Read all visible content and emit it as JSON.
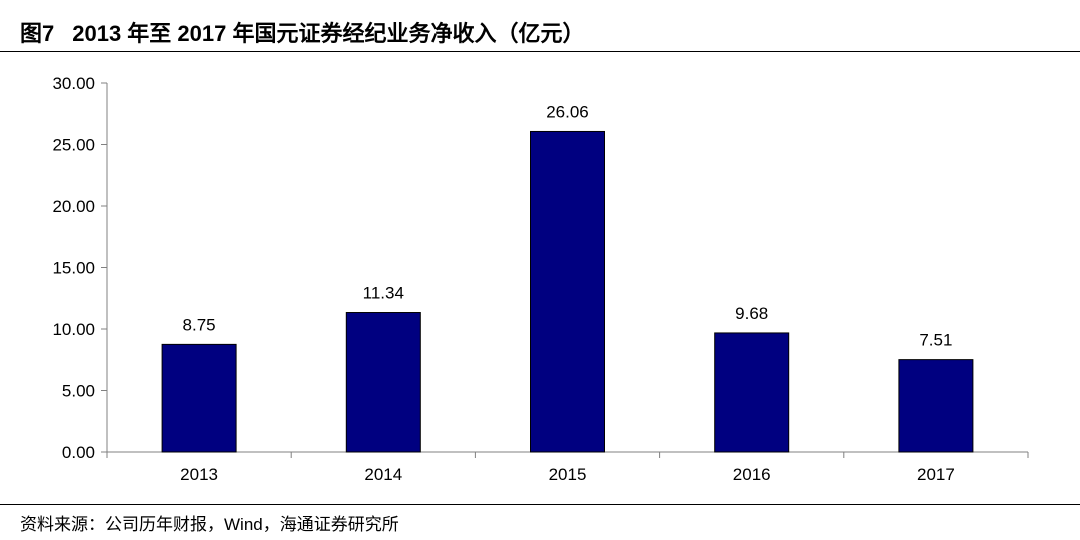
{
  "figure": {
    "label": "图7",
    "title": "2013 年至 2017 年国元证券经纪业务净收入（亿元）",
    "source": "资料来源：公司历年财报，Wind，海通证券研究所"
  },
  "colors": {
    "bar": "#000080",
    "bar_stroke": "#000000",
    "axis": "#808080",
    "text": "#000000"
  },
  "chart_data": {
    "type": "bar",
    "categories": [
      "2013",
      "2014",
      "2015",
      "2016",
      "2017"
    ],
    "values": [
      8.75,
      11.34,
      26.06,
      9.68,
      7.51
    ],
    "data_labels": [
      "8.75",
      "11.34",
      "26.06",
      "9.68",
      "7.51"
    ],
    "title": "",
    "xlabel": "",
    "ylabel": "",
    "ylim": [
      0,
      30
    ],
    "yticks": [
      "0.00",
      "5.00",
      "10.00",
      "15.00",
      "20.00",
      "25.00",
      "30.00"
    ],
    "grid": false,
    "legend": "none"
  }
}
